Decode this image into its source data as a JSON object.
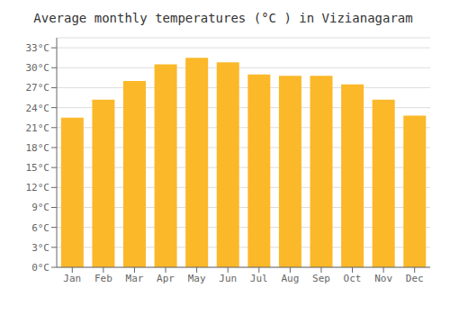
{
  "chart_data": {
    "type": "bar",
    "title": "Average monthly temperatures (°C ) in Vizianagaram",
    "categories": [
      "Jan",
      "Feb",
      "Mar",
      "Apr",
      "May",
      "Jun",
      "Jul",
      "Aug",
      "Sep",
      "Oct",
      "Nov",
      "Dec"
    ],
    "values": [
      22.5,
      25.2,
      28.0,
      30.5,
      31.5,
      30.8,
      29.0,
      28.8,
      28.8,
      27.5,
      25.2,
      22.8
    ],
    "color": "#FBB829",
    "ylim": [
      0,
      34.5
    ],
    "yticks": [
      {
        "value": 0,
        "label": "0°C"
      },
      {
        "value": 3,
        "label": "3°C"
      },
      {
        "value": 6,
        "label": "6°C"
      },
      {
        "value": 9,
        "label": "9°C"
      },
      {
        "value": 12,
        "label": "12°C"
      },
      {
        "value": 15,
        "label": "15°C"
      },
      {
        "value": 18,
        "label": "18°C"
      },
      {
        "value": 21,
        "label": "21°C"
      },
      {
        "value": 24,
        "label": "24°C"
      },
      {
        "value": 27,
        "label": "27°C"
      },
      {
        "value": 30,
        "label": "30°C"
      },
      {
        "value": 33,
        "label": "33°C"
      }
    ],
    "grid": true
  }
}
